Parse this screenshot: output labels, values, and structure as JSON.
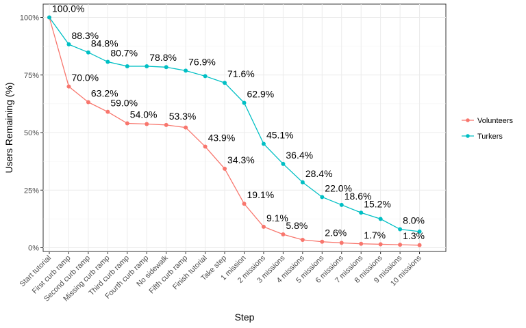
{
  "chart_data": {
    "type": "line",
    "xlabel": "Step",
    "ylabel": "Users Remaining (%)",
    "ylim": [
      0,
      100
    ],
    "y_ticks": [
      {
        "value": 0,
        "label": "0%"
      },
      {
        "value": 25,
        "label": "25%"
      },
      {
        "value": 50,
        "label": "50%"
      },
      {
        "value": 75,
        "label": "75%"
      },
      {
        "value": 100,
        "label": "100%"
      }
    ],
    "categories": [
      "Start tutorial",
      "First curb ramp",
      "Second curb ramp",
      "Missing curb ramp",
      "Third curb ramp",
      "Fourth curb ramp",
      "No sidewalk",
      "Fifth curb ramp",
      "Finish tutorial",
      "Take step",
      "1 mission",
      "2 missions",
      "3 missions",
      "4 missions",
      "5 missions",
      "6 missions",
      "7 missions",
      "8 missions",
      "9 missions",
      "10 missions"
    ],
    "series": [
      {
        "name": "Volunteers",
        "color": "#F8766D",
        "values": [
          100.0,
          70.0,
          63.2,
          59.0,
          54.0,
          53.7,
          53.3,
          52.2,
          43.9,
          34.3,
          19.1,
          9.1,
          5.8,
          3.4,
          2.6,
          2.1,
          1.7,
          1.5,
          1.3,
          1.1
        ],
        "labels": [
          "",
          "70.0%",
          "63.2%",
          "59.0%",
          "54.0%",
          "",
          "53.3%",
          "",
          "43.9%",
          "34.3%",
          "19.1%",
          "9.1%",
          "5.8%",
          "",
          "2.6%",
          "",
          "1.7%",
          "",
          "1.3%",
          ""
        ]
      },
      {
        "name": "Turkers",
        "color": "#00BFC4",
        "values": [
          100.0,
          88.3,
          84.8,
          80.7,
          78.8,
          78.8,
          78.4,
          76.9,
          74.5,
          71.6,
          62.9,
          45.1,
          36.4,
          28.4,
          22.0,
          18.6,
          15.2,
          12.5,
          8.0,
          7.0
        ],
        "labels": [
          "100.0%",
          "88.3%",
          "84.8%",
          "80.7%",
          "",
          "78.8%",
          "",
          "76.9%",
          "",
          "71.6%",
          "62.9%",
          "45.1%",
          "36.4%",
          "28.4%",
          "22.0%",
          "18.6%",
          "15.2%",
          "",
          "8.0%",
          ""
        ]
      }
    ],
    "grid": true,
    "legend_position": "right"
  }
}
